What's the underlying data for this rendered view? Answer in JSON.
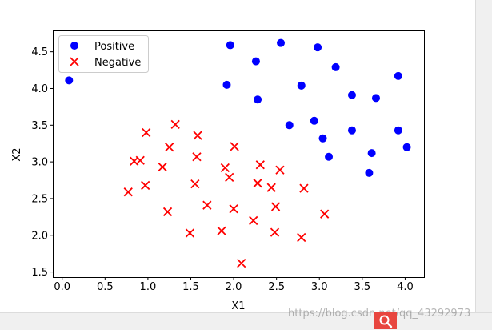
{
  "chart_data": {
    "type": "scatter",
    "xlabel": "X1",
    "ylabel": "X2",
    "xlim": [
      -0.1,
      4.22
    ],
    "ylim": [
      1.43,
      4.78
    ],
    "xticks": [
      "0.0",
      "0.5",
      "1.0",
      "1.5",
      "2.0",
      "2.5",
      "3.0",
      "3.5",
      "4.0"
    ],
    "yticks": [
      "1.5",
      "2.0",
      "2.5",
      "3.0",
      "3.5",
      "4.0",
      "4.5"
    ],
    "grid": false,
    "legend_placement": "upper-left",
    "series": [
      {
        "name": "Positive",
        "marker": "circle",
        "color": "#0000ff",
        "points": [
          [
            0.08,
            4.11
          ],
          [
            1.96,
            4.59
          ],
          [
            2.55,
            4.62
          ],
          [
            2.98,
            4.56
          ],
          [
            2.26,
            4.37
          ],
          [
            3.19,
            4.29
          ],
          [
            1.92,
            4.05
          ],
          [
            2.79,
            4.04
          ],
          [
            3.92,
            4.17
          ],
          [
            3.38,
            3.91
          ],
          [
            3.66,
            3.87
          ],
          [
            2.28,
            3.85
          ],
          [
            2.65,
            3.5
          ],
          [
            2.94,
            3.56
          ],
          [
            3.38,
            3.43
          ],
          [
            3.92,
            3.43
          ],
          [
            3.04,
            3.32
          ],
          [
            3.61,
            3.12
          ],
          [
            4.02,
            3.2
          ],
          [
            3.11,
            3.07
          ],
          [
            3.58,
            2.85
          ]
        ]
      },
      {
        "name": "Negative",
        "marker": "x",
        "color": "#ff0000",
        "points": [
          [
            1.32,
            3.51
          ],
          [
            0.98,
            3.4
          ],
          [
            1.58,
            3.36
          ],
          [
            1.25,
            3.2
          ],
          [
            2.01,
            3.21
          ],
          [
            0.84,
            3.01
          ],
          [
            0.91,
            3.02
          ],
          [
            1.57,
            3.07
          ],
          [
            1.17,
            2.93
          ],
          [
            1.9,
            2.92
          ],
          [
            2.31,
            2.96
          ],
          [
            2.54,
            2.89
          ],
          [
            1.95,
            2.79
          ],
          [
            2.28,
            2.71
          ],
          [
            0.97,
            2.68
          ],
          [
            1.55,
            2.7
          ],
          [
            2.44,
            2.65
          ],
          [
            2.82,
            2.64
          ],
          [
            0.77,
            2.59
          ],
          [
            1.69,
            2.41
          ],
          [
            2.0,
            2.36
          ],
          [
            2.49,
            2.39
          ],
          [
            1.23,
            2.32
          ],
          [
            3.06,
            2.29
          ],
          [
            2.23,
            2.2
          ],
          [
            1.86,
            2.06
          ],
          [
            1.49,
            2.03
          ],
          [
            2.48,
            2.04
          ],
          [
            2.79,
            1.97
          ],
          [
            2.09,
            1.62
          ]
        ]
      }
    ]
  },
  "watermark": "https://blog.csdn.net/qq_43292973",
  "colors": {
    "zoom_button": "#e8463f"
  },
  "icons": {
    "zoom": "magnifier-icon"
  }
}
